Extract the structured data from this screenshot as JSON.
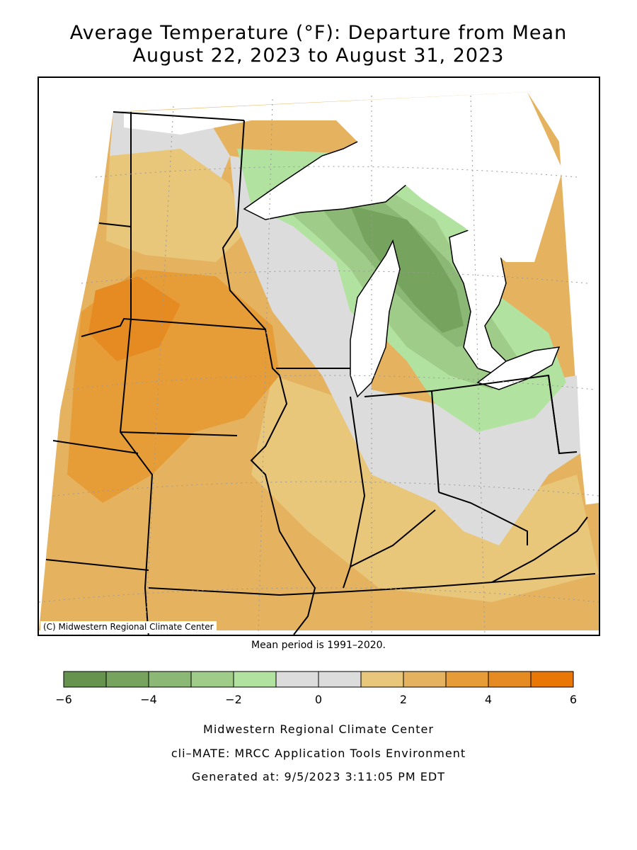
{
  "title": {
    "line1": "Average Temperature (°F): Departure from Mean",
    "line2": "August 22, 2023 to August 31, 2023"
  },
  "map": {
    "copyright": "(C) Midwestern Regional Climate Center"
  },
  "mean_note": "Mean period is 1991–2020.",
  "legend": {
    "min": -6,
    "max": 6,
    "tick_labels": [
      "−6",
      "−4",
      "−2",
      "0",
      "2",
      "4",
      "6"
    ],
    "colors": [
      "#66944f",
      "#76a35d",
      "#8bb874",
      "#9fcc88",
      "#b2e2a0",
      "#dcdcdc",
      "#dcdcdc",
      "#e8c67a",
      "#e5b35f",
      "#e69d38",
      "#e68a22",
      "#e87705"
    ]
  },
  "footer": {
    "line1": "Midwestern Regional Climate Center",
    "line2": "cli–MATE: MRCC Application Tools Environment",
    "line3": "Generated at: 9/5/2023 3:11:05 PM EDT"
  }
}
